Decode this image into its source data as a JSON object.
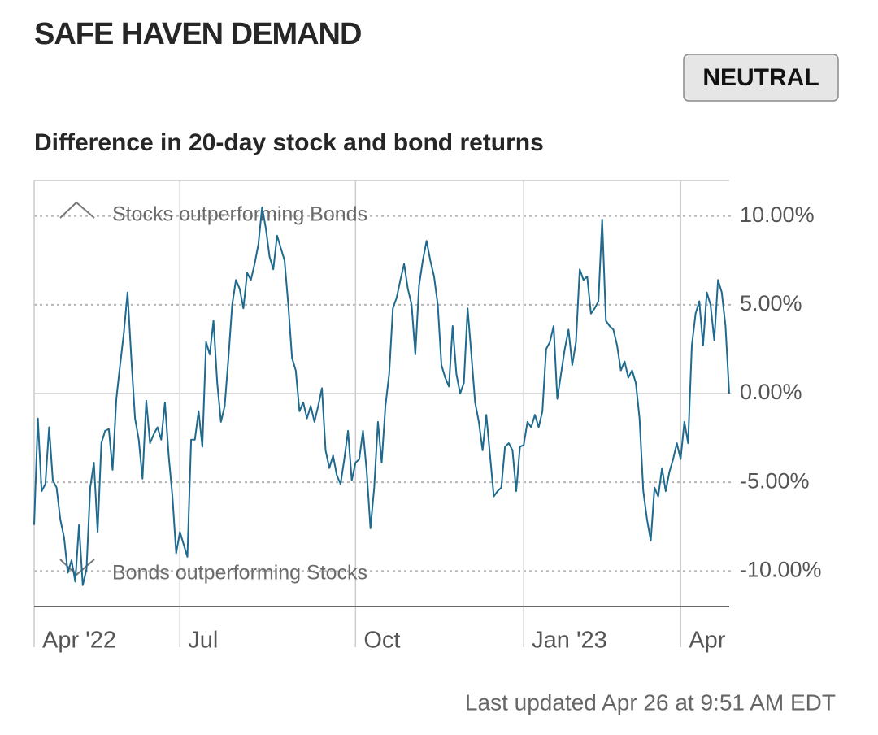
{
  "chart_data": {
    "type": "line",
    "title": "SAFE HAVEN DEMAND",
    "status": "NEUTRAL",
    "subtitle": "Difference in 20-day stock and bond returns",
    "annotations": [
      "Stocks outperforming Bonds",
      "Bonds outperforming Stocks"
    ],
    "footer": "Last updated Apr 26 at 9:51 AM EDT",
    "color": "#1f6a8f",
    "grid": true,
    "values": [
      -7.4,
      -1.4,
      -5.5,
      -5.1,
      -1.9,
      -4.9,
      -5.3,
      -7.1,
      -8.1,
      -10.1,
      -9.4,
      -10.6,
      -7.4,
      -10.8,
      -9.9,
      -5.3,
      -3.9,
      -7.8,
      -2.8,
      -2.1,
      -2.0,
      -4.3,
      -0.3,
      1.6,
      3.4,
      5.7,
      2.0,
      -1.4,
      -2.6,
      -4.8,
      -0.4,
      -2.8,
      -2.3,
      -1.9,
      -2.6,
      -0.5,
      -3.5,
      -5.8,
      -9.0,
      -7.8,
      -8.5,
      -9.2,
      -2.6,
      -2.6,
      -1.0,
      -3.0,
      2.9,
      2.2,
      4.1,
      0.6,
      -1.6,
      -0.7,
      2.0,
      5.0,
      6.4,
      5.9,
      4.8,
      6.8,
      6.4,
      7.3,
      8.4,
      10.5,
      9.3,
      7.7,
      7.0,
      8.9,
      8.2,
      7.5,
      5.0,
      2.0,
      1.3,
      -1.0,
      -0.5,
      -1.4,
      -0.7,
      -1.6,
      -0.7,
      0.3,
      -3.2,
      -4.2,
      -3.5,
      -4.6,
      -5.1,
      -3.7,
      -2.1,
      -4.9,
      -3.9,
      -3.7,
      -2.1,
      -4.4,
      -7.6,
      -5.3,
      -1.6,
      -3.9,
      -0.7,
      1.1,
      4.8,
      5.4,
      6.4,
      7.3,
      5.9,
      5.0,
      2.2,
      6.1,
      7.5,
      8.6,
      7.5,
      6.6,
      5.0,
      1.6,
      0.9,
      0.4,
      3.8,
      1.1,
      0.0,
      0.6,
      4.8,
      2.2,
      -0.5,
      -1.6,
      -3.2,
      -1.2,
      -3.5,
      -5.8,
      -5.5,
      -5.3,
      -3.0,
      -2.8,
      -3.2,
      -5.5,
      -3.0,
      -2.9,
      -1.6,
      -1.9,
      -1.2,
      -1.9,
      -1.0,
      2.5,
      2.9,
      3.8,
      -0.3,
      1.1,
      2.5,
      3.6,
      1.6,
      2.9,
      7.0,
      6.4,
      6.6,
      4.5,
      4.8,
      5.2,
      9.8,
      4.1,
      3.8,
      3.6,
      2.7,
      1.3,
      1.8,
      0.9,
      1.3,
      0.6,
      -1.4,
      -5.5,
      -7.1,
      -8.3,
      -5.3,
      -5.8,
      -4.2,
      -5.5,
      -4.4,
      -3.7,
      -2.8,
      -3.7,
      -1.6,
      -2.8,
      2.7,
      4.5,
      5.2,
      2.7,
      5.7,
      5.0,
      3.0,
      6.4,
      5.7,
      3.8,
      0.0
    ],
    "xlim": [
      0,
      186
    ],
    "xticks": [
      {
        "value": 0,
        "label": "Apr '22"
      },
      {
        "value": 39,
        "label": "Jul"
      },
      {
        "value": 86,
        "label": "Oct"
      },
      {
        "value": 131,
        "label": "Jan '23"
      },
      {
        "value": 173,
        "label": "Apr"
      }
    ],
    "ylim": [
      -12,
      12
    ],
    "yticks": [
      {
        "value": 10,
        "label": "10.00%"
      },
      {
        "value": 5,
        "label": "5.00%"
      },
      {
        "value": 0,
        "label": "0.00%"
      },
      {
        "value": -5,
        "label": "-5.00%"
      },
      {
        "value": -10,
        "label": "-10.00%"
      }
    ]
  }
}
